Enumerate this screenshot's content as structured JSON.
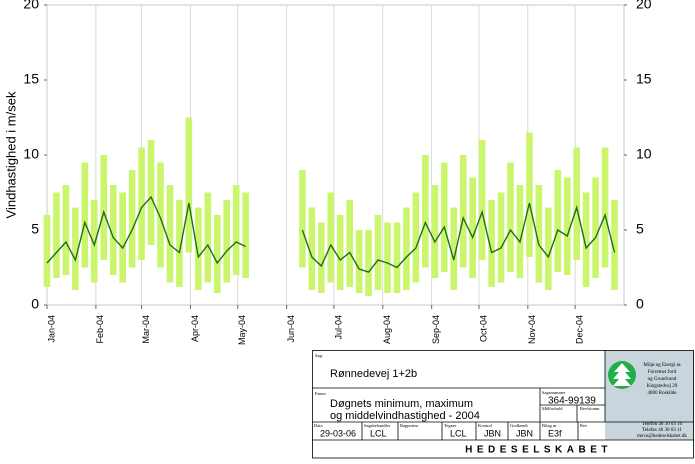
{
  "chart_data": {
    "type": "line",
    "ylabel": "Vindhastighed i m/sek",
    "x": [
      1,
      7,
      13,
      19,
      25,
      31,
      37,
      43,
      49,
      55,
      61,
      67,
      73,
      79,
      85,
      91,
      97,
      103,
      109,
      115,
      121,
      127,
      133,
      139,
      145,
      151,
      157,
      163,
      169,
      175,
      181,
      187,
      193,
      199,
      205,
      211,
      217,
      223,
      229,
      235,
      241,
      247,
      253,
      259,
      265,
      271,
      277,
      283,
      289,
      295,
      301,
      307,
      313,
      319,
      325,
      331,
      337,
      343,
      349,
      355,
      361
    ],
    "xlim": [
      1,
      367
    ],
    "xticks": [
      {
        "value": 1,
        "label": "Jan-04"
      },
      {
        "value": 32,
        "label": "Feb-04"
      },
      {
        "value": 61,
        "label": "Mar-04"
      },
      {
        "value": 92,
        "label": "Apr-04"
      },
      {
        "value": 122,
        "label": "May-04"
      },
      {
        "value": 153,
        "label": "Jun-04"
      },
      {
        "value": 183,
        "label": "Jul-04"
      },
      {
        "value": 214,
        "label": "Aug-04"
      },
      {
        "value": 245,
        "label": "Sep-04"
      },
      {
        "value": 275,
        "label": "Oct-04"
      },
      {
        "value": 306,
        "label": "Nov-04"
      },
      {
        "value": 336,
        "label": "Dec-04"
      }
    ],
    "ylim": [
      0,
      20
    ],
    "yticks": [
      0,
      5,
      10,
      15,
      20
    ],
    "grid": "x",
    "series": [
      {
        "color": "#1f6e1f",
        "values": [
          2.8,
          3.5,
          4.2,
          3.0,
          5.5,
          4.0,
          6.2,
          4.5,
          3.8,
          5.0,
          6.5,
          7.2,
          5.8,
          4.0,
          3.5,
          6.8,
          3.2,
          4.0,
          2.8,
          3.6,
          4.2,
          3.9,
          null,
          null,
          null,
          null,
          null,
          5.0,
          3.2,
          2.6,
          4.0,
          3.0,
          3.5,
          2.4,
          2.2,
          3.0,
          2.8,
          2.5,
          3.2,
          3.8,
          5.5,
          4.2,
          5.2,
          3.0,
          5.8,
          4.5,
          6.2,
          3.5,
          3.8,
          5.0,
          4.2,
          6.8,
          4.0,
          3.2,
          5.0,
          4.6,
          6.5,
          3.8,
          4.5,
          6.0,
          3.5
        ]
      },
      {
        "color": "#ccf56e",
        "values": [
          1.2,
          1.8,
          2.0,
          1.0,
          2.5,
          1.5,
          3.0,
          2.0,
          1.5,
          2.5,
          3.0,
          4.0,
          2.5,
          1.5,
          1.2,
          3.5,
          1.0,
          1.5,
          0.8,
          1.5,
          2.0,
          1.8,
          null,
          null,
          null,
          null,
          null,
          2.5,
          1.0,
          0.8,
          1.5,
          1.0,
          1.2,
          0.8,
          0.6,
          1.0,
          0.8,
          0.8,
          1.0,
          1.5,
          2.5,
          1.8,
          2.2,
          1.0,
          2.5,
          1.8,
          3.0,
          1.2,
          1.5,
          2.2,
          1.8,
          3.2,
          1.5,
          1.0,
          2.2,
          2.0,
          3.0,
          1.2,
          1.8,
          2.5,
          1.0
        ]
      },
      {
        "color": "#ccf56e",
        "values": [
          6.0,
          7.5,
          8.0,
          6.5,
          9.5,
          7.0,
          10.0,
          8.0,
          7.5,
          9.0,
          10.5,
          11.0,
          9.5,
          8.0,
          7.0,
          12.5,
          6.5,
          7.5,
          6.0,
          7.0,
          8.0,
          7.5,
          null,
          null,
          null,
          null,
          null,
          9.0,
          6.5,
          5.5,
          7.5,
          6.0,
          7.0,
          5.0,
          5.0,
          6.0,
          5.5,
          5.5,
          6.5,
          7.5,
          10.0,
          8.0,
          9.5,
          6.5,
          10.0,
          8.5,
          11.0,
          7.0,
          7.5,
          9.5,
          8.0,
          11.5,
          8.0,
          6.5,
          9.0,
          8.5,
          10.5,
          7.5,
          8.5,
          10.5,
          7.0
        ]
      }
    ]
  },
  "title_block": {
    "case_label": "Sag:",
    "case": "Rønnedevej 1+2b",
    "subject_label": "Emne:",
    "subject_line1": "Døgnets minimum, maximum",
    "subject_line2": "og middelvindhastighed - 2004",
    "case_number_label": "Sagsnummer",
    "case_number": "364-99139",
    "scale_label": "Målforhold",
    "revision_no_label": "Revisionnr",
    "cells": [
      {
        "label": "Dato",
        "value": "29-03-06"
      },
      {
        "label": "Sagsbehandler",
        "value": "LCL"
      },
      {
        "label": "Rapportnr"
      },
      {
        "label": "Tegner",
        "value": "LCL"
      },
      {
        "label": "Kontrol",
        "value": "JBN"
      },
      {
        "label": "Godkendt",
        "value": "JBN"
      },
      {
        "label": "Bilag nr",
        "value": "E3f"
      },
      {
        "label": "Rev"
      }
    ],
    "company": "HEDESELSKABET",
    "address": [
      "Miljø og Energi as",
      "Forretnet Jord",
      "og Grundvand",
      "Kingstedvej 29",
      "4000 Roskilde"
    ],
    "contact": [
      "Telefon 46 30 03 10",
      "Telefax 46 30 03 11",
      "mevo@hedeselskabet.dk"
    ]
  }
}
